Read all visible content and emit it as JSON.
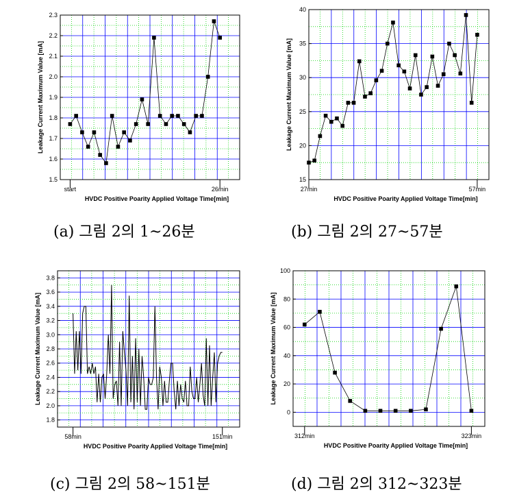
{
  "chart_data": [
    {
      "type": "line",
      "xlabel": "HVDC Positive Poarity Applied Voltage Time[min]",
      "ylabel": "Leakage Current Maximum Value [mA]",
      "x_tick_labels": [
        "start",
        "26min"
      ],
      "ylim": [
        1.5,
        2.3
      ],
      "y_ticks": [
        "1.5",
        "1.6",
        "1.7",
        "1.8",
        "1.9",
        "2.0",
        "2.1",
        "2.2",
        "2.3"
      ],
      "markers": true,
      "grid": true,
      "x": [
        1,
        2,
        3,
        4,
        5,
        6,
        7,
        8,
        9,
        10,
        11,
        12,
        13,
        14,
        15,
        16,
        17,
        18,
        19,
        20,
        21,
        22,
        23,
        24,
        25,
        26
      ],
      "values": [
        1.77,
        1.81,
        1.73,
        1.66,
        1.73,
        1.62,
        1.58,
        1.81,
        1.66,
        1.73,
        1.69,
        1.77,
        1.89,
        1.77,
        2.19,
        1.81,
        1.77,
        1.81,
        1.81,
        1.77,
        1.73,
        1.81,
        1.81,
        2.0,
        2.27,
        2.19
      ],
      "caption": "(a) 그림 2의 1~26분"
    },
    {
      "type": "line",
      "xlabel": "HVDC Positive Poarity Applied Voltage Time[min]",
      "ylabel": "Leakage Current Maximum Value [mA]",
      "x_tick_labels": [
        "27min",
        "57min"
      ],
      "ylim": [
        15,
        40
      ],
      "y_ticks": [
        "15",
        "20",
        "25",
        "30",
        "35",
        "40"
      ],
      "markers": true,
      "grid": true,
      "x": [
        27,
        28,
        29,
        30,
        31,
        32,
        33,
        34,
        35,
        36,
        37,
        38,
        39,
        40,
        41,
        42,
        43,
        44,
        45,
        46,
        47,
        48,
        49,
        50,
        51,
        52,
        53,
        54,
        55,
        56,
        57
      ],
      "values": [
        17.5,
        17.8,
        21.4,
        24.4,
        23.5,
        24.0,
        22.9,
        26.3,
        26.3,
        32.4,
        27.2,
        27.7,
        29.6,
        31.0,
        35.0,
        38.1,
        31.8,
        30.9,
        28.4,
        33.3,
        27.5,
        28.6,
        33.1,
        28.8,
        30.5,
        35.0,
        33.3,
        30.6,
        39.2,
        26.3,
        36.3
      ],
      "caption": "(b) 그림 2의 27~57분"
    },
    {
      "type": "line",
      "xlabel": "HVDC Positive Poarity Applied Voltage Time[min]",
      "ylabel": "Leakage Current Maximum Value [mA]",
      "x_tick_labels": [
        "58min",
        "151min"
      ],
      "ylim": [
        1.7,
        3.9
      ],
      "y_ticks": [
        "1.8",
        "2.0",
        "2.2",
        "2.4",
        "2.6",
        "2.8",
        "3.0",
        "3.2",
        "3.4",
        "3.6",
        "3.8"
      ],
      "markers": false,
      "grid": true,
      "x_start": 58,
      "x_end": 151,
      "values": [
        3.3,
        2.45,
        3.05,
        2.5,
        3.05,
        2.45,
        3.3,
        3.4,
        3.4,
        2.45,
        2.55,
        2.45,
        2.6,
        2.45,
        2.55,
        2.05,
        2.45,
        2.05,
        2.4,
        2.45,
        2.1,
        2.45,
        3.0,
        2.45,
        3.7,
        2.1,
        2.3,
        2.35,
        2.0,
        2.9,
        2.0,
        3.05,
        2.75,
        2.5,
        2.0,
        3.55,
        2.05,
        2.7,
        1.95,
        2.95,
        2.05,
        2.8,
        2.0,
        2.7,
        2.4,
        1.95,
        1.95,
        2.4,
        2.3,
        2.3,
        2.4,
        3.4,
        2.4,
        1.95,
        2.55,
        2.4,
        2.0,
        2.35,
        2.05,
        2.05,
        2.35,
        2.6,
        2.6,
        2.2,
        1.95,
        2.35,
        2.0,
        2.3,
        2.1,
        2.05,
        2.35,
        2.0,
        2.0,
        2.55,
        2.2,
        2.1,
        2.1,
        2.4,
        2.05,
        2.3,
        2.6,
        2.15,
        2.0,
        2.95,
        2.0,
        2.85,
        2.0,
        2.4,
        2.75,
        2.05,
        2.6,
        2.7,
        2.75,
        2.75
      ],
      "caption": "(c) 그림 2의 58~151분"
    },
    {
      "type": "line",
      "xlabel": "HVDC Positive Poarity Applied Voltage Time[min]",
      "ylabel": "Leakage Current Maximum Value [mA]",
      "x_tick_labels": [
        "312min",
        "323min"
      ],
      "ylim": [
        -10,
        100
      ],
      "y_ticks": [
        "0",
        "20",
        "40",
        "60",
        "80",
        "100"
      ],
      "markers": true,
      "grid": true,
      "x": [
        312,
        313,
        314,
        315,
        316,
        317,
        318,
        319,
        320,
        321,
        322,
        323
      ],
      "values": [
        62,
        71,
        28,
        8,
        1,
        1,
        1,
        1,
        2,
        59,
        89,
        1
      ],
      "caption": "(d) 그림 2의 312~323분"
    }
  ],
  "colors": {
    "line": "#000000",
    "grid_major": "#0000ff",
    "grid_minor": "#00d000",
    "axis": "#000000"
  }
}
